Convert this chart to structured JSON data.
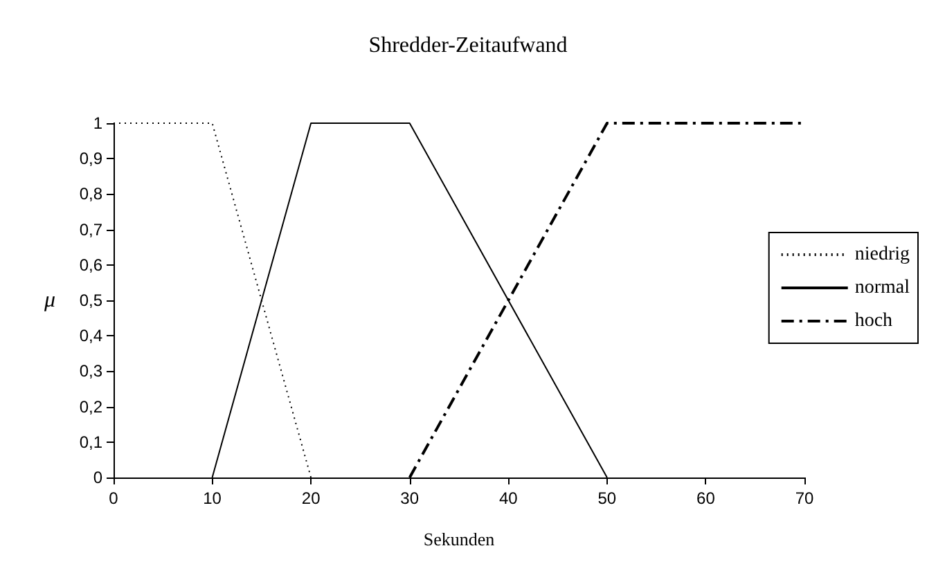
{
  "chart_data": {
    "type": "line",
    "title": "Shredder-Zeitaufwand",
    "xlabel": "Sekunden",
    "ylabel": "μ",
    "series": [
      {
        "name": "niedrig",
        "color": "#000000",
        "line_style": "dotted",
        "x": [
          0,
          10,
          20
        ],
        "values": [
          1,
          1,
          0
        ]
      },
      {
        "name": "normal",
        "color": "#000000",
        "line_style": "solid",
        "x": [
          10,
          20,
          30,
          50
        ],
        "values": [
          0,
          1,
          1,
          0
        ]
      },
      {
        "name": "hoch",
        "color": "#000000",
        "line_style": "dashdot",
        "x": [
          30,
          50,
          70
        ],
        "values": [
          0,
          1,
          1
        ]
      }
    ],
    "xlim": [
      0,
      70
    ],
    "xticks": [
      0,
      10,
      20,
      30,
      40,
      50,
      60,
      70
    ],
    "ylim": [
      0,
      1
    ],
    "yticks": [
      0,
      {
        "value": 0.1,
        "label": "0,1"
      },
      {
        "value": 0.2,
        "label": "0,2"
      },
      {
        "value": 0.3,
        "label": "0,3"
      },
      {
        "value": 0.4,
        "label": "0,4"
      },
      {
        "value": 0.5,
        "label": "0,5"
      },
      {
        "value": 0.6,
        "label": "0,6"
      },
      {
        "value": 0.7,
        "label": "0,7"
      },
      {
        "value": 0.8,
        "label": "0,8"
      },
      {
        "value": 0.9,
        "label": "0,9"
      },
      1
    ],
    "grid": false,
    "legend": "right",
    "marker": "none"
  }
}
